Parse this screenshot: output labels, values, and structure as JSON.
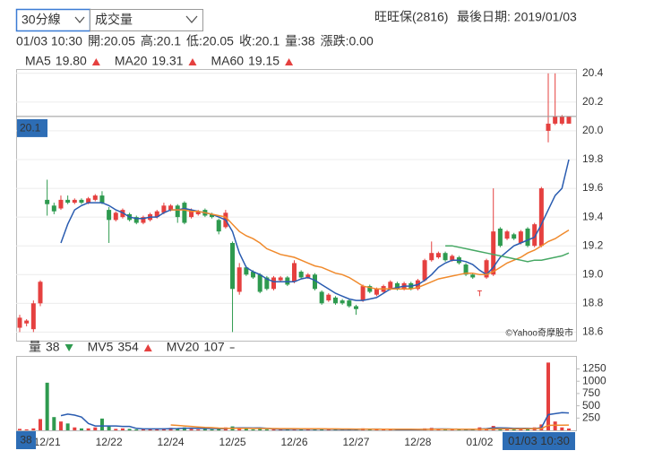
{
  "controls": {
    "interval": "30分線",
    "indicator": "成交量"
  },
  "header": {
    "name": "旺旺保(2816)",
    "last_date": "最後日期: 2019/01/03"
  },
  "quote": {
    "time": "01/03 10:30",
    "items": [
      {
        "label": "開:",
        "value": 20.05
      },
      {
        "label": "高:",
        "value": 20.1
      },
      {
        "label": "低:",
        "value": 20.05
      },
      {
        "label": "收:",
        "value": 20.1
      },
      {
        "label": "量:",
        "value": 38
      },
      {
        "label": "漲跌:",
        "value": 0,
        "value_label": "0.00"
      }
    ]
  },
  "chart_data": [
    {
      "type": "candlestick",
      "up_color": "#e5403f",
      "down_color": "#2e9a4f",
      "watermark": "©Yahoo奇摩股市",
      "ylim": [
        18.54,
        20.43
      ],
      "grid": true,
      "yticks": [
        18.6,
        18.8,
        {
          "value": 19.0,
          "label": "19.0"
        },
        19.2,
        19.4,
        19.6,
        19.8,
        {
          "value": 20.0,
          "label": "20.0"
        },
        20.2,
        20.4
      ],
      "open": [
        18.63,
        18.66,
        18.62,
        18.8,
        19.52,
        19.48,
        19.46,
        19.52,
        19.5,
        19.52,
        19.5,
        19.52,
        19.55,
        19.45,
        19.38,
        19.4,
        19.42,
        19.4,
        19.36,
        19.38,
        19.4,
        19.43,
        19.45,
        19.48,
        19.5,
        19.4,
        19.42,
        19.45,
        19.42,
        19.38,
        19.33,
        19.22,
        18.88,
        19.05,
        19.02,
        19.0,
        18.98,
        18.9,
        18.96,
        18.98,
        18.95,
        19.02,
        18.98,
        19.0,
        18.88,
        18.82,
        18.84,
        18.82,
        18.82,
        18.78,
        18.82,
        18.92,
        18.86,
        18.88,
        18.9,
        18.94,
        18.9,
        18.94,
        18.9,
        18.96,
        19.1,
        19.12,
        19.15,
        19.1,
        19.12,
        19.07,
        19.0,
        18.89,
        18.98,
        19.0,
        19.32,
        19.25,
        19.28,
        19.22,
        19.32,
        19.2,
        19.2,
        20.0,
        20.05,
        20.05,
        20.05
      ],
      "high": [
        18.72,
        18.69,
        18.82,
        18.96,
        19.66,
        19.5,
        19.55,
        19.55,
        19.53,
        19.53,
        19.54,
        19.56,
        19.58,
        19.47,
        19.44,
        19.46,
        19.43,
        19.41,
        19.41,
        19.43,
        19.45,
        19.5,
        19.49,
        19.49,
        19.51,
        19.46,
        19.45,
        19.46,
        19.43,
        19.39,
        19.45,
        19.23,
        19.08,
        19.06,
        19.03,
        19.01,
        18.99,
        18.99,
        18.99,
        18.99,
        19.1,
        19.03,
        19.01,
        19.01,
        18.89,
        18.87,
        18.85,
        18.83,
        18.83,
        18.79,
        18.93,
        18.93,
        18.91,
        18.93,
        18.96,
        18.95,
        18.95,
        18.95,
        18.97,
        19.11,
        19.23,
        19.16,
        19.16,
        19.14,
        19.13,
        19.08,
        19.01,
        18.89,
        19.11,
        19.6,
        19.33,
        19.31,
        19.29,
        19.31,
        19.33,
        19.36,
        19.61,
        20.4,
        20.4,
        20.11,
        20.1
      ],
      "low": [
        18.6,
        18.64,
        18.6,
        18.78,
        19.41,
        19.42,
        19.45,
        19.49,
        19.49,
        19.49,
        19.49,
        19.51,
        19.49,
        19.22,
        19.37,
        19.39,
        19.37,
        19.35,
        19.35,
        19.37,
        19.39,
        19.42,
        19.44,
        19.36,
        19.35,
        19.39,
        19.41,
        19.4,
        19.39,
        19.28,
        19.32,
        18.6,
        18.86,
        18.99,
        18.97,
        18.87,
        18.89,
        18.89,
        18.95,
        18.92,
        18.94,
        18.97,
        18.97,
        18.89,
        18.79,
        18.81,
        18.79,
        18.79,
        18.77,
        18.72,
        18.81,
        18.87,
        18.85,
        18.87,
        18.89,
        18.89,
        18.89,
        18.89,
        18.89,
        18.95,
        19.09,
        19.11,
        19.09,
        19.09,
        19.07,
        18.99,
        18.97,
        18.85,
        18.97,
        18.99,
        19.19,
        19.24,
        19.24,
        19.21,
        19.19,
        19.19,
        19.19,
        19.92,
        20.04,
        20.04,
        20.05
      ],
      "close": [
        18.7,
        18.68,
        18.8,
        18.95,
        19.49,
        19.44,
        19.52,
        19.5,
        19.52,
        19.5,
        19.53,
        19.55,
        19.5,
        19.38,
        19.43,
        19.45,
        19.38,
        19.36,
        19.4,
        19.42,
        19.44,
        19.48,
        19.48,
        19.4,
        19.36,
        19.45,
        19.44,
        19.41,
        19.4,
        19.3,
        19.43,
        18.9,
        19.05,
        19.0,
        18.98,
        18.88,
        18.9,
        18.98,
        18.98,
        18.93,
        19.08,
        18.98,
        19.0,
        18.9,
        18.8,
        18.86,
        18.8,
        18.8,
        18.78,
        18.76,
        18.92,
        18.88,
        18.9,
        18.92,
        18.95,
        18.9,
        18.94,
        18.9,
        18.96,
        19.1,
        19.15,
        19.15,
        19.1,
        19.13,
        19.08,
        19.0,
        18.98,
        18.89,
        19.1,
        19.3,
        19.2,
        19.3,
        19.25,
        19.3,
        19.2,
        19.35,
        19.6,
        20.05,
        20.1,
        20.1,
        20.1
      ],
      "series": [
        {
          "name": "MA5",
          "color": "#2a5cb0",
          "last": 19.8,
          "last_label": "19.80",
          "values": [
            null,
            null,
            null,
            null,
            null,
            null,
            19.22,
            19.35,
            19.45,
            19.48,
            19.5,
            19.5,
            19.5,
            19.48,
            19.45,
            19.43,
            19.4,
            19.39,
            19.39,
            19.4,
            19.4,
            19.43,
            19.45,
            19.45,
            19.46,
            19.45,
            19.44,
            19.43,
            19.42,
            19.4,
            19.38,
            19.3,
            19.15,
            19.05,
            19.02,
            19.0,
            18.97,
            18.95,
            18.95,
            18.95,
            18.95,
            18.97,
            18.98,
            18.96,
            18.93,
            18.9,
            18.87,
            18.85,
            18.83,
            18.82,
            18.82,
            18.83,
            18.84,
            18.87,
            18.9,
            18.91,
            18.92,
            18.92,
            18.93,
            18.96,
            19.0,
            19.05,
            19.08,
            19.1,
            19.1,
            19.09,
            19.07,
            19.03,
            19.0,
            19.05,
            19.12,
            19.16,
            19.2,
            19.22,
            19.24,
            19.26,
            19.35,
            19.45,
            19.55,
            19.6,
            19.8
          ]
        },
        {
          "name": "MA20",
          "color": "#f08a2c",
          "last": 19.31,
          "values": [
            null,
            null,
            null,
            null,
            null,
            null,
            null,
            null,
            null,
            null,
            null,
            null,
            null,
            null,
            null,
            null,
            null,
            null,
            null,
            null,
            null,
            null,
            19.45,
            19.45,
            19.45,
            19.44,
            19.44,
            19.43,
            19.42,
            19.41,
            19.4,
            19.35,
            19.3,
            19.27,
            19.25,
            19.22,
            19.18,
            19.16,
            19.14,
            19.13,
            19.12,
            19.1,
            19.08,
            19.06,
            19.05,
            19.03,
            19.01,
            19.0,
            18.98,
            18.95,
            18.92,
            18.91,
            18.9,
            18.9,
            18.9,
            18.9,
            18.9,
            18.9,
            18.91,
            18.93,
            18.95,
            18.97,
            18.98,
            18.99,
            19.0,
            19.01,
            19.01,
            19.0,
            19.0,
            19.02,
            19.05,
            19.08,
            19.1,
            19.12,
            19.15,
            19.17,
            19.2,
            19.23,
            19.25,
            19.28,
            19.31
          ]
        },
        {
          "name": "MA60",
          "color": "#46a864",
          "last": 19.15,
          "values": [
            null,
            null,
            null,
            null,
            null,
            null,
            null,
            null,
            null,
            null,
            null,
            null,
            null,
            null,
            null,
            null,
            null,
            null,
            null,
            null,
            null,
            null,
            null,
            null,
            null,
            null,
            null,
            null,
            null,
            null,
            null,
            null,
            null,
            null,
            null,
            null,
            null,
            null,
            null,
            null,
            null,
            null,
            null,
            null,
            null,
            null,
            null,
            null,
            null,
            null,
            null,
            null,
            null,
            null,
            null,
            null,
            null,
            null,
            null,
            null,
            null,
            null,
            19.2,
            19.2,
            19.19,
            19.18,
            19.17,
            19.16,
            19.15,
            19.14,
            19.13,
            19.12,
            19.11,
            19.1,
            19.09,
            19.1,
            19.1,
            19.11,
            19.12,
            19.13,
            19.15
          ]
        }
      ]
    },
    {
      "type": "bar",
      "name": "量",
      "ylim": [
        0,
        1515
      ],
      "grid": false,
      "tick_color": "#d9534f",
      "yticks": [
        250,
        500,
        750,
        1000,
        1250
      ],
      "categories": [
        null,
        null,
        null,
        null,
        "12/21",
        null,
        null,
        null,
        null,
        null,
        null,
        null,
        null,
        "12/22",
        null,
        null,
        null,
        null,
        null,
        null,
        null,
        null,
        "12/24",
        null,
        null,
        null,
        null,
        null,
        null,
        null,
        null,
        "12/25",
        null,
        null,
        null,
        null,
        null,
        null,
        null,
        null,
        "12/26",
        null,
        null,
        null,
        null,
        null,
        null,
        null,
        null,
        "12/27",
        null,
        null,
        null,
        null,
        null,
        null,
        null,
        null,
        "12/28",
        null,
        null,
        null,
        null,
        null,
        null,
        null,
        null,
        "01/02",
        null,
        null,
        null,
        null,
        null,
        null,
        null,
        null,
        null,
        null,
        null,
        null,
        null
      ],
      "values": [
        30,
        20,
        40,
        230,
        970,
        270,
        180,
        140,
        60,
        40,
        40,
        60,
        240,
        80,
        30,
        40,
        30,
        20,
        30,
        20,
        30,
        40,
        50,
        40,
        60,
        30,
        20,
        30,
        20,
        40,
        60,
        80,
        50,
        30,
        20,
        30,
        20,
        20,
        10,
        20,
        40,
        20,
        20,
        20,
        30,
        10,
        10,
        10,
        20,
        30,
        40,
        20,
        10,
        10,
        20,
        10,
        10,
        10,
        20,
        40,
        50,
        20,
        10,
        10,
        20,
        30,
        20,
        60,
        40,
        90,
        30,
        20,
        20,
        30,
        40,
        60,
        120,
        1380,
        180,
        60,
        38
      ],
      "series": [
        {
          "name": "MV5",
          "color": "#2a5cb0",
          "last": 354,
          "values": [
            null,
            null,
            null,
            null,
            null,
            null,
            300,
            330,
            310,
            270,
            140,
            90,
            90,
            90,
            90,
            80,
            80,
            40,
            30,
            30,
            30,
            30,
            34,
            36,
            44,
            44,
            40,
            36,
            36,
            34,
            34,
            46,
            50,
            52,
            48,
            52,
            40,
            30,
            20,
            20,
            22,
            22,
            22,
            24,
            28,
            22,
            20,
            16,
            16,
            16,
            22,
            24,
            26,
            24,
            22,
            14,
            12,
            12,
            14,
            18,
            26,
            28,
            28,
            26,
            22,
            18,
            18,
            26,
            34,
            50,
            50,
            48,
            40,
            40,
            40,
            34,
            54,
            320,
            340,
            360,
            354
          ]
        },
        {
          "name": "MV20",
          "color": "#f08a2c",
          "last": 107,
          "values": [
            null,
            null,
            null,
            null,
            null,
            null,
            null,
            null,
            null,
            null,
            null,
            null,
            null,
            null,
            null,
            null,
            null,
            null,
            null,
            null,
            null,
            null,
            110,
            100,
            90,
            80,
            70,
            60,
            55,
            45,
            40,
            40,
            40,
            40,
            38,
            38,
            36,
            36,
            34,
            34,
            34,
            33,
            32,
            32,
            32,
            30,
            30,
            28,
            28,
            26,
            26,
            26,
            24,
            24,
            24,
            22,
            22,
            22,
            20,
            20,
            22,
            22,
            22,
            22,
            22,
            22,
            22,
            24,
            26,
            28,
            30,
            30,
            30,
            32,
            32,
            34,
            38,
            100,
            104,
            106,
            107
          ]
        }
      ]
    }
  ]
}
